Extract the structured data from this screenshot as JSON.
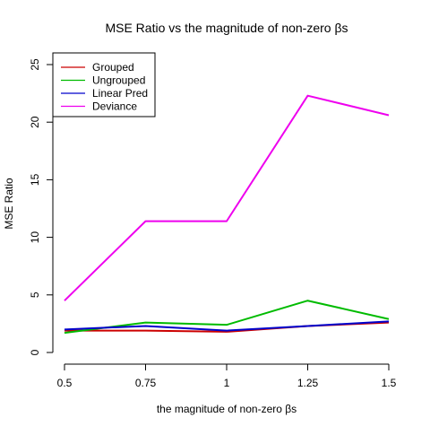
{
  "chart_data": {
    "type": "line",
    "title": "MSE Ratio vs the magnitude of non-zero βs",
    "xlabel": "the magnitude of non-zero βs",
    "ylabel": "MSE Ratio",
    "x": [
      0.5,
      0.75,
      1,
      1.25,
      1.5
    ],
    "x_tick_labels": [
      "0.5",
      "0.75",
      "1",
      "1.25",
      "1.5"
    ],
    "y_ticks": [
      0,
      5,
      10,
      15,
      20,
      25
    ],
    "y_tick_labels": [
      "0",
      "5",
      "10",
      "15",
      "20",
      "25"
    ],
    "xlim": [
      0.5,
      1.5
    ],
    "ylim": [
      0,
      25
    ],
    "grid": false,
    "legend_position": "top-left",
    "series": [
      {
        "name": "Grouped",
        "color": "#CC0000",
        "values": [
          1.9,
          1.9,
          1.8,
          2.3,
          2.6
        ]
      },
      {
        "name": "Ungrouped",
        "color": "#00BB00",
        "values": [
          1.7,
          2.6,
          2.4,
          4.5,
          2.9
        ]
      },
      {
        "name": "Linear Pred",
        "color": "#0000CC",
        "values": [
          2.0,
          2.3,
          1.9,
          2.3,
          2.7
        ]
      },
      {
        "name": "Deviance",
        "color": "#EE00EE",
        "values": [
          4.5,
          11.4,
          11.4,
          22.3,
          20.6
        ]
      }
    ]
  }
}
